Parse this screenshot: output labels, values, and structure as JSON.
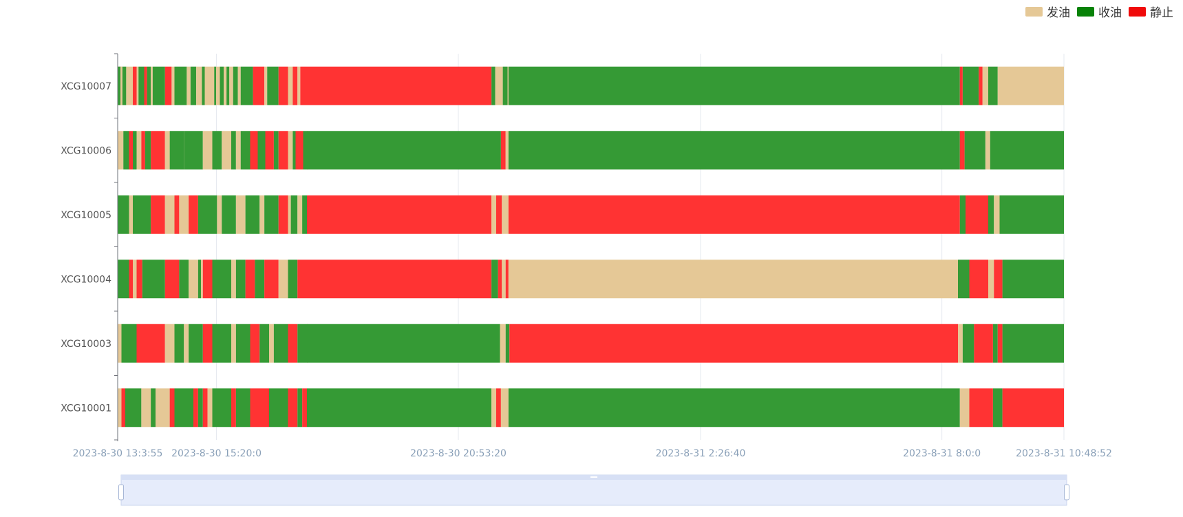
{
  "legend": {
    "items": [
      {
        "label": "发油",
        "color": "#E5C896",
        "key": "fa"
      },
      {
        "label": "收油",
        "color": "#078207",
        "key": "shou"
      },
      {
        "label": "静止",
        "color": "#F00A0A",
        "key": "jing"
      }
    ]
  },
  "chart_data": {
    "type": "timeline",
    "categories": [
      "XCG10007",
      "XCG10006",
      "XCG10005",
      "XCG10004",
      "XCG10003",
      "XCG10001"
    ],
    "time_range": [
      "2023-8-30 13:3:55",
      "2023-8-31 10:48:52"
    ],
    "time_ticks": [
      {
        "label": "2023-8-30 13:3:55",
        "t": 0
      },
      {
        "label": "2023-8-30 15:20:0",
        "t": 0.1044
      },
      {
        "label": "2023-8-30 20:53:20",
        "t": 0.36
      },
      {
        "label": "2023-8-31 2:26:40",
        "t": 0.616
      },
      {
        "label": "2023-8-31 8:0:0",
        "t": 0.871
      },
      {
        "label": "2023-8-31 10:48:52",
        "t": 1
      }
    ],
    "legend_placement": "top-right",
    "series": [
      {
        "name": "XCG10007",
        "segments": [
          [
            "fa",
            0,
            0.005
          ],
          [
            "shou",
            0,
            0.003
          ],
          [
            "fa",
            0.003,
            0.005
          ],
          [
            "shou",
            0.005,
            0.009
          ],
          [
            "fa",
            0.009,
            0.016
          ],
          [
            "jing",
            0.016,
            0.02
          ],
          [
            "fa",
            0.02,
            0.022
          ],
          [
            "shou",
            0.022,
            0.028
          ],
          [
            "jing",
            0.028,
            0.031
          ],
          [
            "shou",
            0.031,
            0.035
          ],
          [
            "fa",
            0.035,
            0.037
          ],
          [
            "shou",
            0.037,
            0.05
          ],
          [
            "jing",
            0.05,
            0.057
          ],
          [
            "fa",
            0.057,
            0.06
          ],
          [
            "shou",
            0.06,
            0.073
          ],
          [
            "fa",
            0.073,
            0.077
          ],
          [
            "shou",
            0.077,
            0.083
          ],
          [
            "fa",
            0.083,
            0.089
          ],
          [
            "shou",
            0.089,
            0.092
          ],
          [
            "fa",
            0.092,
            0.102
          ],
          [
            "shou",
            0.102,
            0.104
          ],
          [
            "fa",
            0.104,
            0.108
          ],
          [
            "shou",
            0.108,
            0.112
          ],
          [
            "fa",
            0.112,
            0.115
          ],
          [
            "shou",
            0.115,
            0.118
          ],
          [
            "fa",
            0.118,
            0.122
          ],
          [
            "shou",
            0.122,
            0.127
          ],
          [
            "fa",
            0.127,
            0.13
          ],
          [
            "shou",
            0.13,
            0.143
          ],
          [
            "jing",
            0.143,
            0.155
          ],
          [
            "fa",
            0.155,
            0.158
          ],
          [
            "shou",
            0.158,
            0.17
          ],
          [
            "jing",
            0.17,
            0.18
          ],
          [
            "fa",
            0.18,
            0.185
          ],
          [
            "jing",
            0.185,
            0.19
          ],
          [
            "fa",
            0.19,
            0.193
          ],
          [
            "jing",
            0.193,
            0.395
          ],
          [
            "shou",
            0.395,
            0.399
          ],
          [
            "fa",
            0.399,
            0.407
          ],
          [
            "shou",
            0.407,
            0.412
          ],
          [
            "fa",
            0.412,
            0.413
          ],
          [
            "shou",
            0.413,
            0.89
          ],
          [
            "jing",
            0.89,
            0.893
          ],
          [
            "shou",
            0.893,
            0.91
          ],
          [
            "jing",
            0.91,
            0.914
          ],
          [
            "fa",
            0.914,
            0.92
          ],
          [
            "shou",
            0.92,
            0.93
          ],
          [
            "fa",
            0.93,
            1
          ]
        ]
      },
      {
        "name": "XCG10006",
        "segments": [
          [
            "fa",
            0,
            0.006
          ],
          [
            "shou",
            0.006,
            0.012
          ],
          [
            "jing",
            0.012,
            0.016
          ],
          [
            "shou",
            0.016,
            0.02
          ],
          [
            "fa",
            0.02,
            0.025
          ],
          [
            "jing",
            0.025,
            0.029
          ],
          [
            "shou",
            0.029,
            0.035
          ],
          [
            "jing",
            0.035,
            0.05
          ],
          [
            "fa",
            0.05,
            0.055
          ],
          [
            "shou",
            0.055,
            0.07
          ],
          [
            "fa",
            0.07,
            0.07
          ],
          [
            "shou",
            0.07,
            0.09
          ],
          [
            "fa",
            0.09,
            0.1
          ],
          [
            "shou",
            0.1,
            0.11
          ],
          [
            "fa",
            0.11,
            0.12
          ],
          [
            "shou",
            0.12,
            0.125
          ],
          [
            "fa",
            0.125,
            0.13
          ],
          [
            "shou",
            0.13,
            0.14
          ],
          [
            "jing",
            0.14,
            0.148
          ],
          [
            "shou",
            0.148,
            0.156
          ],
          [
            "jing",
            0.156,
            0.165
          ],
          [
            "shou",
            0.165,
            0.17
          ],
          [
            "jing",
            0.17,
            0.18
          ],
          [
            "fa",
            0.18,
            0.185
          ],
          [
            "shou",
            0.185,
            0.188
          ],
          [
            "jing",
            0.188,
            0.196
          ],
          [
            "shou",
            0.196,
            0.2
          ],
          [
            "jing",
            0.2,
            0.2
          ],
          [
            "shou",
            0.2,
            0.405
          ],
          [
            "jing",
            0.405,
            0.41
          ],
          [
            "fa",
            0.41,
            0.413
          ],
          [
            "shou",
            0.413,
            0.89
          ],
          [
            "jing",
            0.89,
            0.895
          ],
          [
            "shou",
            0.895,
            0.917
          ],
          [
            "fa",
            0.917,
            0.922
          ],
          [
            "shou",
            0.922,
            1
          ]
        ]
      },
      {
        "name": "XCG10005",
        "segments": [
          [
            "shou",
            0,
            0.012
          ],
          [
            "fa",
            0.012,
            0.016
          ],
          [
            "shou",
            0.016,
            0.035
          ],
          [
            "jing",
            0.035,
            0.05
          ],
          [
            "fa",
            0.05,
            0.06
          ],
          [
            "jing",
            0.06,
            0.065
          ],
          [
            "fa",
            0.065,
            0.075
          ],
          [
            "jing",
            0.075,
            0.085
          ],
          [
            "shou",
            0.085,
            0.105
          ],
          [
            "fa",
            0.105,
            0.11
          ],
          [
            "shou",
            0.11,
            0.125
          ],
          [
            "fa",
            0.125,
            0.135
          ],
          [
            "shou",
            0.135,
            0.15
          ],
          [
            "fa",
            0.15,
            0.155
          ],
          [
            "shou",
            0.155,
            0.17
          ],
          [
            "jing",
            0.17,
            0.18
          ],
          [
            "fa",
            0.18,
            0.183
          ],
          [
            "shou",
            0.183,
            0.19
          ],
          [
            "fa",
            0.19,
            0.195
          ],
          [
            "shou",
            0.195,
            0.2
          ],
          [
            "jing",
            0.2,
            0.395
          ],
          [
            "fa",
            0.395,
            0.4
          ],
          [
            "jing",
            0.4,
            0.406
          ],
          [
            "fa",
            0.406,
            0.413
          ],
          [
            "jing",
            0.413,
            0.89
          ],
          [
            "shou",
            0.89,
            0.896
          ],
          [
            "jing",
            0.896,
            0.92
          ],
          [
            "shou",
            0.92,
            0.926
          ],
          [
            "fa",
            0.926,
            0.932
          ],
          [
            "shou",
            0.932,
            1
          ]
        ]
      },
      {
        "name": "XCG10004",
        "segments": [
          [
            "shou",
            0,
            0.012
          ],
          [
            "jing",
            0.012,
            0.016
          ],
          [
            "fa",
            0.016,
            0.02
          ],
          [
            "jing",
            0.02,
            0.026
          ],
          [
            "shou",
            0.026,
            0.05
          ],
          [
            "jing",
            0.05,
            0.065
          ],
          [
            "shou",
            0.065,
            0.075
          ],
          [
            "fa",
            0.075,
            0.085
          ],
          [
            "shou",
            0.085,
            0.088
          ],
          [
            "fa",
            0.088,
            0.09
          ],
          [
            "jing",
            0.09,
            0.1
          ],
          [
            "shou",
            0.1,
            0.12
          ],
          [
            "fa",
            0.12,
            0.125
          ],
          [
            "shou",
            0.125,
            0.135
          ],
          [
            "jing",
            0.135,
            0.145
          ],
          [
            "shou",
            0.145,
            0.155
          ],
          [
            "jing",
            0.155,
            0.17
          ],
          [
            "fa",
            0.17,
            0.18
          ],
          [
            "shou",
            0.18,
            0.19
          ],
          [
            "jing",
            0.19,
            0.2
          ],
          [
            "jing",
            0.2,
            0.395
          ],
          [
            "shou",
            0.395,
            0.402
          ],
          [
            "jing",
            0.402,
            0.406
          ],
          [
            "fa",
            0.406,
            0.41
          ],
          [
            "jing",
            0.41,
            0.413
          ],
          [
            "fa",
            0.413,
            0.888
          ],
          [
            "shou",
            0.888,
            0.9
          ],
          [
            "jing",
            0.9,
            0.92
          ],
          [
            "fa",
            0.92,
            0.926
          ],
          [
            "jing",
            0.926,
            0.935
          ],
          [
            "shou",
            0.935,
            1
          ]
        ]
      },
      {
        "name": "XCG10003",
        "segments": [
          [
            "fa",
            0,
            0.004
          ],
          [
            "shou",
            0.004,
            0.02
          ],
          [
            "jing",
            0.02,
            0.05
          ],
          [
            "fa",
            0.05,
            0.06
          ],
          [
            "shou",
            0.06,
            0.07
          ],
          [
            "fa",
            0.07,
            0.075
          ],
          [
            "shou",
            0.075,
            0.09
          ],
          [
            "jing",
            0.09,
            0.1
          ],
          [
            "shou",
            0.1,
            0.12
          ],
          [
            "fa",
            0.12,
            0.125
          ],
          [
            "shou",
            0.125,
            0.14
          ],
          [
            "jing",
            0.14,
            0.15
          ],
          [
            "shou",
            0.15,
            0.16
          ],
          [
            "fa",
            0.16,
            0.165
          ],
          [
            "shou",
            0.165,
            0.18
          ],
          [
            "jing",
            0.18,
            0.19
          ],
          [
            "shou",
            0.19,
            0.2
          ],
          [
            "jing",
            0.2,
            0.2
          ],
          [
            "shou",
            0.2,
            0.404
          ],
          [
            "fa",
            0.404,
            0.41
          ],
          [
            "shou",
            0.41,
            0.414
          ],
          [
            "jing",
            0.414,
            0.888
          ],
          [
            "fa",
            0.888,
            0.893
          ],
          [
            "shou",
            0.893,
            0.905
          ],
          [
            "jing",
            0.905,
            0.925
          ],
          [
            "shou",
            0.925,
            0.93
          ],
          [
            "jing",
            0.93,
            0.935
          ],
          [
            "shou",
            0.935,
            1
          ]
        ]
      },
      {
        "name": "XCG10001",
        "segments": [
          [
            "fa",
            0,
            0.004
          ],
          [
            "jing",
            0.004,
            0.008
          ],
          [
            "shou",
            0.008,
            0.025
          ],
          [
            "fa",
            0.025,
            0.035
          ],
          [
            "shou",
            0.035,
            0.04
          ],
          [
            "fa",
            0.04,
            0.055
          ],
          [
            "jing",
            0.055,
            0.06
          ],
          [
            "shou",
            0.06,
            0.08
          ],
          [
            "jing",
            0.08,
            0.085
          ],
          [
            "shou",
            0.085,
            0.09
          ],
          [
            "jing",
            0.09,
            0.095
          ],
          [
            "fa",
            0.095,
            0.1
          ],
          [
            "shou",
            0.1,
            0.12
          ],
          [
            "jing",
            0.12,
            0.125
          ],
          [
            "shou",
            0.125,
            0.14
          ],
          [
            "jing",
            0.14,
            0.16
          ],
          [
            "shou",
            0.16,
            0.18
          ],
          [
            "jing",
            0.18,
            0.19
          ],
          [
            "shou",
            0.19,
            0.195
          ],
          [
            "jing",
            0.195,
            0.2
          ],
          [
            "shou",
            0.2,
            0.395
          ],
          [
            "fa",
            0.395,
            0.4
          ],
          [
            "jing",
            0.4,
            0.405
          ],
          [
            "fa",
            0.405,
            0.413
          ],
          [
            "shou",
            0.413,
            0.89
          ],
          [
            "fa",
            0.89,
            0.9
          ],
          [
            "jing",
            0.9,
            0.925
          ],
          [
            "shou",
            0.925,
            0.935
          ],
          [
            "jing",
            0.935,
            1
          ]
        ]
      }
    ]
  }
}
